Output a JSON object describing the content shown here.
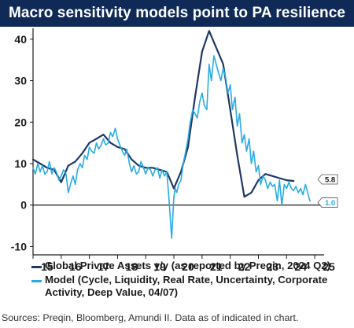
{
  "title": "Macro sensitivity models point to PA resilience",
  "source": "Sources: Preqin, Bloomberg, Amundi II. Data as of indicated in chart.",
  "colors": {
    "banner": "#0f2a56",
    "preqin": "#1f3864",
    "model": "#29abe2",
    "axis": "#1b1b1b"
  },
  "chart_data": {
    "type": "line",
    "xlim": [
      15,
      25.5
    ],
    "ylim": [
      -12,
      43
    ],
    "x_ticks": [
      15,
      16,
      17,
      18,
      19,
      20,
      21,
      22,
      23,
      24,
      25
    ],
    "x_tick_labels": [
      "15",
      "16",
      "17",
      "18",
      "19",
      "20",
      "21",
      "22",
      "23",
      "24",
      "25"
    ],
    "y_ticks": [
      -10,
      0,
      10,
      20,
      30,
      40
    ],
    "y_tick_labels": [
      "-10",
      "0",
      "10",
      "20",
      "30",
      "40"
    ],
    "grid": false,
    "series": [
      {
        "name": "Global Private Assets y/y (as reported by Preqin, 2024 Q2)",
        "color": "#1f3864",
        "end_label": "5.8",
        "x": [
          15.0,
          15.25,
          15.5,
          15.75,
          16.0,
          16.25,
          16.5,
          16.75,
          17.0,
          17.25,
          17.5,
          17.75,
          18.0,
          18.25,
          18.5,
          18.75,
          19.0,
          19.25,
          19.5,
          19.75,
          20.0,
          20.25,
          20.5,
          20.75,
          21.0,
          21.25,
          21.5,
          21.75,
          22.0,
          22.25,
          22.5,
          22.75,
          23.0,
          23.25,
          23.5,
          23.75,
          24.0,
          24.25
        ],
        "y": [
          11,
          10,
          9,
          8.5,
          5.5,
          9.5,
          10.5,
          12.5,
          15,
          16,
          17,
          15,
          14,
          13.5,
          11,
          9.5,
          9,
          9,
          8.5,
          8,
          4,
          8,
          14,
          26,
          37,
          42,
          38,
          34,
          23,
          12,
          2,
          3,
          6,
          7.5,
          7,
          6.5,
          6,
          5.8
        ]
      },
      {
        "name": "Model (Cycle, Liquidity, Real Rate, Uncertainty, Corporate Activity, Deep Value, 04/07)",
        "color": "#29abe2",
        "end_label": "1.0",
        "x": [
          15.0,
          15.08,
          15.17,
          15.25,
          15.33,
          15.42,
          15.5,
          15.58,
          15.67,
          15.75,
          15.83,
          15.92,
          16.0,
          16.08,
          16.17,
          16.25,
          16.33,
          16.42,
          16.5,
          16.58,
          16.67,
          16.75,
          16.83,
          16.92,
          17.0,
          17.08,
          17.17,
          17.25,
          17.33,
          17.42,
          17.5,
          17.58,
          17.67,
          17.75,
          17.83,
          17.92,
          18.0,
          18.08,
          18.17,
          18.25,
          18.33,
          18.42,
          18.5,
          18.58,
          18.67,
          18.75,
          18.83,
          18.92,
          19.0,
          19.08,
          19.17,
          19.25,
          19.33,
          19.42,
          19.5,
          19.58,
          19.67,
          19.75,
          19.83,
          19.92,
          20.0,
          20.05,
          20.1,
          20.17,
          20.25,
          20.33,
          20.42,
          20.5,
          20.58,
          20.67,
          20.75,
          20.83,
          20.92,
          21.0,
          21.08,
          21.17,
          21.25,
          21.33,
          21.42,
          21.5,
          21.58,
          21.67,
          21.75,
          21.83,
          21.92,
          22.0,
          22.08,
          22.17,
          22.25,
          22.33,
          22.42,
          22.5,
          22.58,
          22.67,
          22.75,
          22.83,
          22.92,
          23.0,
          23.08,
          23.17,
          23.25,
          23.33,
          23.42,
          23.5,
          23.58,
          23.67,
          23.75,
          23.83,
          23.92,
          24.0,
          24.08,
          24.17,
          24.25,
          24.33,
          24.42,
          24.5,
          24.58,
          24.67,
          24.75,
          24.83
        ],
        "y": [
          9,
          7.5,
          10,
          8,
          9.5,
          7.5,
          8,
          10.5,
          7.5,
          9,
          8,
          6,
          7,
          8.5,
          7.5,
          3,
          5,
          7,
          5,
          8.5,
          10,
          9,
          12,
          11,
          14,
          13,
          12.5,
          15,
          13.5,
          14.5,
          16,
          14.5,
          15,
          17.5,
          16.5,
          18.5,
          16,
          14.5,
          13,
          12,
          13.5,
          10,
          8,
          9.5,
          7.5,
          8,
          10.5,
          9,
          7.5,
          9,
          8.5,
          7,
          8.5,
          9,
          6.5,
          8.5,
          7,
          8,
          1,
          -8,
          2,
          4,
          3,
          5,
          6,
          10,
          13,
          16,
          20,
          23,
          22,
          21,
          25,
          27,
          24,
          23,
          34,
          30,
          36,
          34,
          32,
          30,
          33,
          31,
          27,
          29,
          23,
          26,
          19,
          22,
          15,
          17,
          13,
          16,
          10,
          13,
          8,
          9.5,
          5,
          7,
          6,
          4,
          5.5,
          4.5,
          5,
          1,
          6,
          0,
          5,
          4,
          5.5,
          4,
          3.5,
          4.5,
          3,
          4,
          2.5,
          5,
          3,
          1
        ]
      }
    ]
  }
}
